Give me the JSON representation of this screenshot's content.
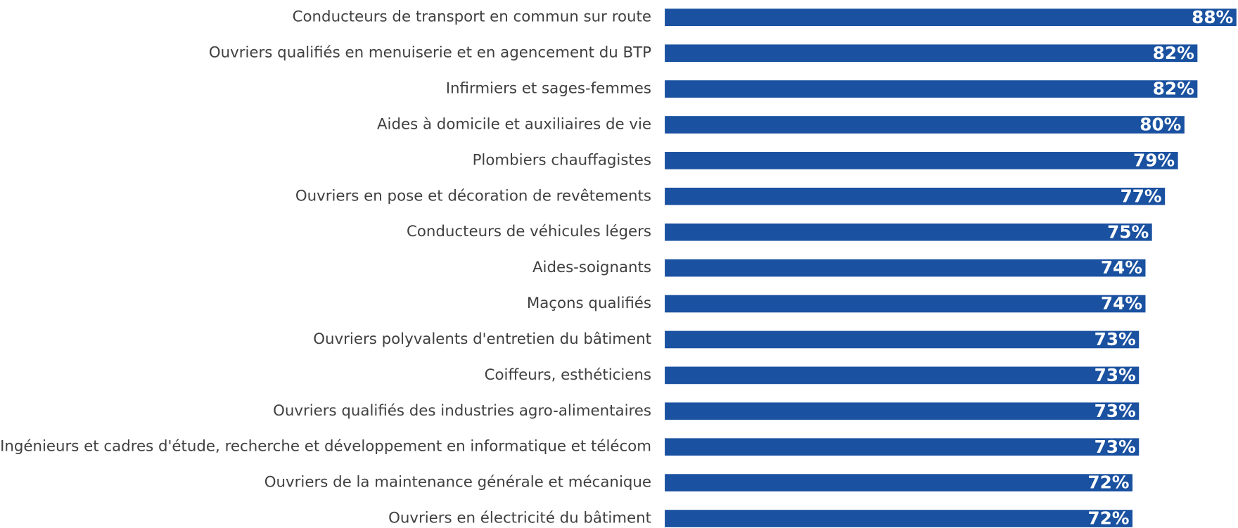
{
  "chart_data": {
    "type": "bar",
    "orientation": "horizontal",
    "color": "#1a51a0",
    "categories": [
      "Conducteurs de transport en commun sur route",
      "Ouvriers qualifiés en menuiserie et en agencement du BTP",
      "Infirmiers et sages-femmes",
      "Aides à domicile et auxiliaires de vie",
      "Plombiers chauffagistes",
      "Ouvriers en pose et décoration de revêtements",
      "Conducteurs de véhicules légers",
      "Aides-soignants",
      "Maçons qualifiés",
      "Ouvriers polyvalents d'entretien du bâtiment",
      "Coiffeurs, esthéticiens",
      "Ouvriers qualifiés des industries agro-alimentaires",
      "Ingénieurs et cadres d'étude, recherche et développement en informatique et télécom",
      "Ouvriers de la maintenance générale et mécanique",
      "Ouvriers en électricité du bâtiment"
    ],
    "values": [
      88,
      82,
      82,
      80,
      79,
      77,
      75,
      74,
      74,
      73,
      73,
      73,
      73,
      72,
      72
    ],
    "value_labels": [
      "88%",
      "82%",
      "82%",
      "80%",
      "79%",
      "77%",
      "75%",
      "74%",
      "74%",
      "73%",
      "73%",
      "73%",
      "73%",
      "72%",
      "72%"
    ],
    "xlim": [
      0,
      88
    ]
  }
}
